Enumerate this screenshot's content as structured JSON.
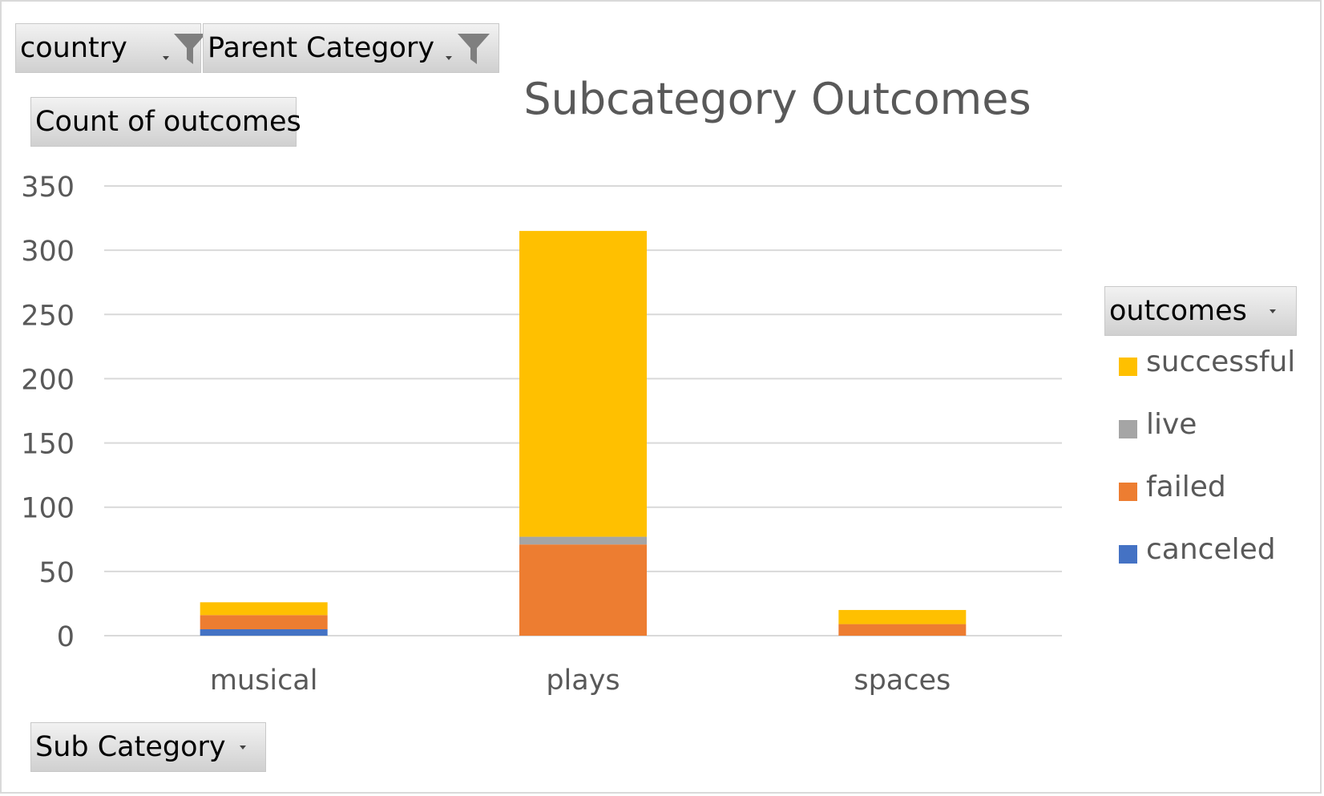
{
  "filters": {
    "country": {
      "label": "country"
    },
    "parent_category": {
      "label": "Parent Category"
    }
  },
  "value_field": {
    "label": "Count of outcomes"
  },
  "axis_field": {
    "label": "Sub Category"
  },
  "legend_field": {
    "label": "outcomes"
  },
  "icons": {
    "filter": "funnel-filter-icon",
    "dropdown": "dropdown-arrow-icon"
  },
  "chart_data": {
    "type": "bar",
    "stacked": true,
    "title": "Subcategory Outcomes",
    "xlabel": "",
    "ylabel": "",
    "categories": [
      "musical",
      "plays",
      "spaces"
    ],
    "series": [
      {
        "name": "canceled",
        "color": "#4472C4",
        "values": [
          5,
          0,
          0
        ]
      },
      {
        "name": "failed",
        "color": "#ED7D31",
        "values": [
          11,
          71,
          9
        ]
      },
      {
        "name": "live",
        "color": "#A5A5A5",
        "values": [
          0,
          6,
          0
        ]
      },
      {
        "name": "successful",
        "color": "#FFC000",
        "values": [
          10,
          238,
          11
        ]
      }
    ],
    "legend_order": [
      "successful",
      "live",
      "failed",
      "canceled"
    ],
    "ylim": [
      0,
      350
    ],
    "yticks": [
      "0",
      "50",
      "100",
      "150",
      "200",
      "250",
      "300",
      "350"
    ],
    "grid": true,
    "legend_position": "right"
  }
}
